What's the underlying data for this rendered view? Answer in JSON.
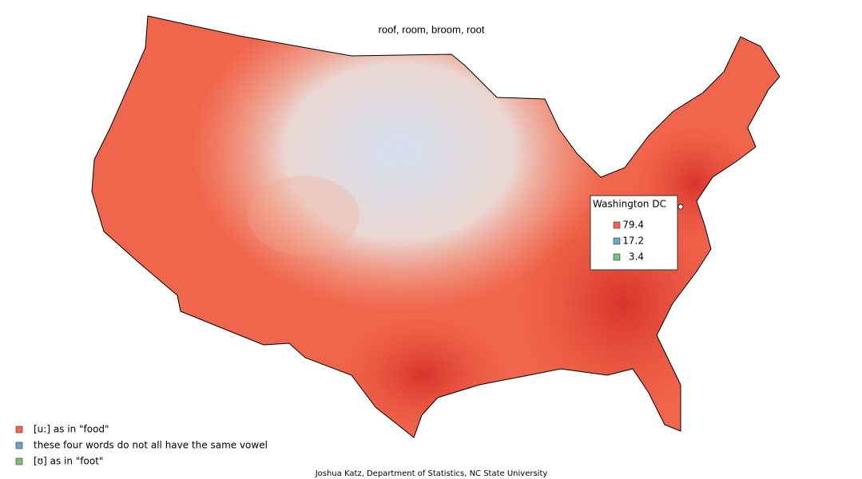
{
  "title": "roof, room, broom, root",
  "legend": [
    {
      "label": "[u:] as in \"food\"",
      "color": "#f0664c"
    },
    {
      "label": "these four words do not all have the same vowel",
      "color": "#6fa6cf"
    },
    {
      "label": "[ʊ] as in \"foot\"",
      "color": "#73c476"
    }
  ],
  "popup": {
    "title": "Washington DC",
    "values": [
      79.4,
      17.2,
      3.4
    ]
  },
  "credit": "Joshua Katz, Department of Statistics, NC State University"
}
